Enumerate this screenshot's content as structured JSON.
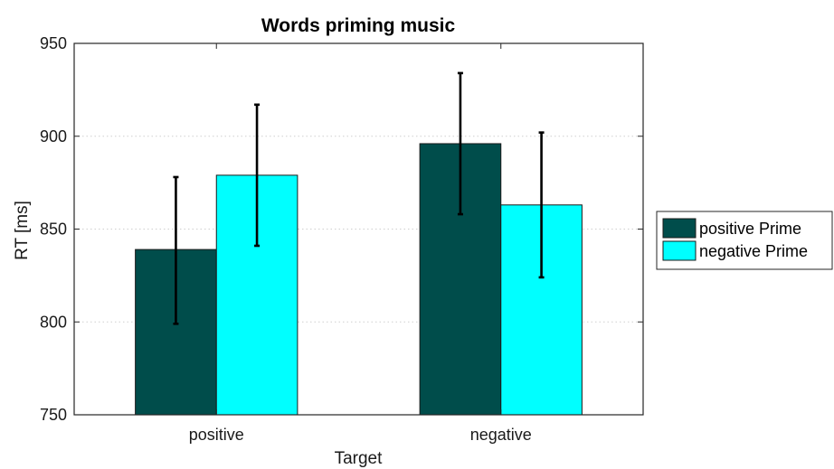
{
  "chart_data": {
    "type": "bar",
    "title": "Words priming music",
    "xlabel": "Target",
    "ylabel": "RT [ms]",
    "categories": [
      "positive",
      "negative"
    ],
    "ylim": [
      750,
      950
    ],
    "yticks": [
      750,
      800,
      850,
      900,
      950
    ],
    "grid": "horizontal-dotted",
    "legend_position": "right",
    "series": [
      {
        "name": "positive Prime",
        "color": "#004d4b",
        "values": [
          839,
          896
        ],
        "error_low": [
          799,
          858
        ],
        "error_high": [
          878,
          934
        ]
      },
      {
        "name": "negative Prime",
        "color": "#00ffff",
        "values": [
          879,
          863
        ],
        "error_low": [
          841,
          824
        ],
        "error_high": [
          917,
          902
        ]
      }
    ]
  }
}
